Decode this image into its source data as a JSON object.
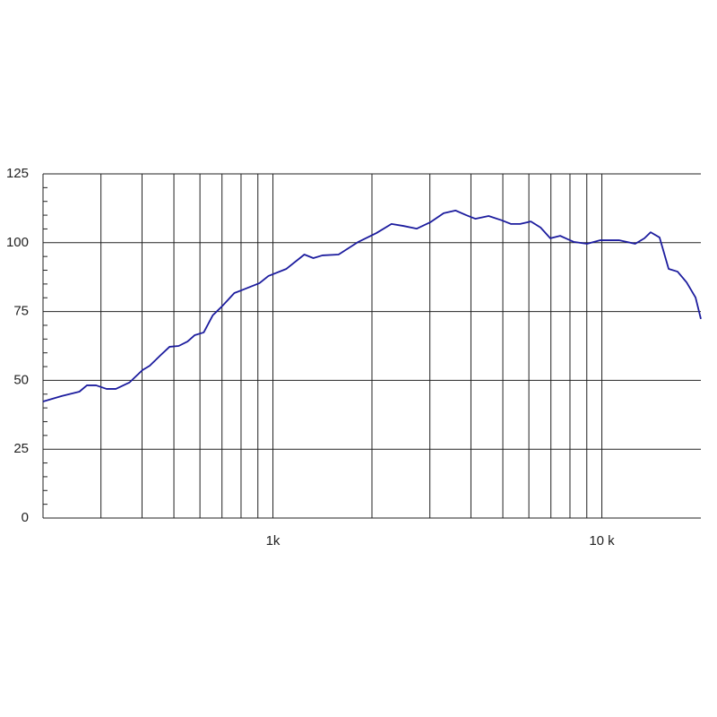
{
  "chart_data": {
    "type": "line",
    "xscale": "log",
    "grid": true,
    "xlim": [
      200,
      20000
    ],
    "ylim": [
      0,
      125
    ],
    "xticks": [
      {
        "value": 1000,
        "label": "1k"
      },
      {
        "value": 10000,
        "label": "10 k"
      }
    ],
    "xgrid": [
      300,
      400,
      500,
      600,
      700,
      800,
      900,
      2000,
      3000,
      4000,
      5000,
      6000,
      7000,
      8000,
      9000
    ],
    "yticks": [
      0,
      25,
      50,
      75,
      100,
      125
    ],
    "yminorticks": [
      5,
      10,
      15,
      20,
      30,
      35,
      40,
      45,
      55,
      60,
      65,
      70,
      80,
      85,
      90,
      95,
      105,
      110,
      115,
      120
    ],
    "series": [
      {
        "color": "#1c1c9e",
        "x": [
          200,
          228,
          258,
          272,
          290,
          312,
          333,
          366,
          401,
          422,
          456,
          485,
          517,
          550,
          578,
          616,
          656,
          699,
          763,
          802,
          910,
          969,
          1099,
          1246,
          1327,
          1414,
          1583,
          1818,
          2063,
          2293,
          2490,
          2735,
          3006,
          3304,
          3589,
          3870,
          4123,
          4527,
          4974,
          5297,
          5642,
          6084,
          6513,
          6971,
          7469,
          8208,
          9014,
          9897,
          11270,
          12630,
          13470,
          14070,
          14980,
          15960,
          16990,
          18100,
          19270,
          20000
        ],
        "values": [
          42.3,
          44.3,
          45.9,
          48.2,
          48.2,
          46.9,
          46.9,
          49.2,
          53.7,
          55.3,
          59.2,
          62.2,
          62.5,
          64.1,
          66.4,
          67.4,
          73.6,
          76.8,
          81.7,
          82.7,
          85.3,
          87.9,
          90.5,
          95.7,
          94.4,
          95.4,
          95.7,
          100.3,
          103.5,
          106.8,
          106.1,
          105.1,
          107.4,
          110.7,
          111.7,
          110,
          108.7,
          109.7,
          108.1,
          106.8,
          106.8,
          107.7,
          105.5,
          101.6,
          102.5,
          100.3,
          99.6,
          100.9,
          100.9,
          99.6,
          101.6,
          103.8,
          101.9,
          90.5,
          89.5,
          85.6,
          80.1,
          72.3
        ]
      }
    ]
  }
}
